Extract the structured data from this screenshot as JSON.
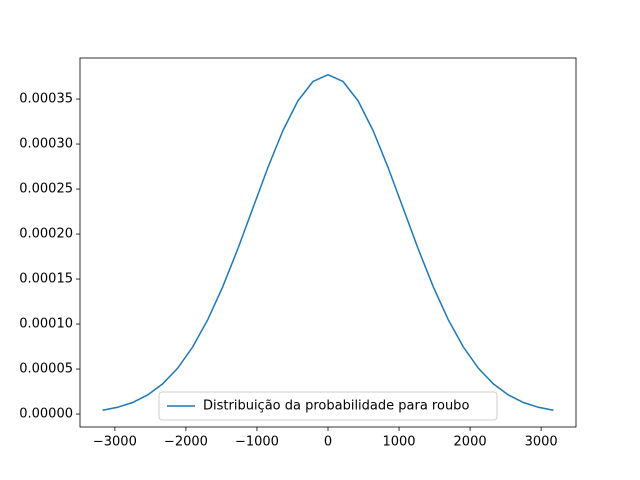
{
  "chart_data": {
    "type": "line",
    "x": [
      -3174,
      -2962.4,
      -2750.8,
      -2539.2,
      -2327.6,
      -2116,
      -1904.4,
      -1692.8,
      -1481.2,
      -1269.6,
      -1058,
      -846.4,
      -634.8,
      -423.2,
      -211.6,
      0,
      211.6,
      423.2,
      634.8,
      846.4,
      1058,
      1269.6,
      1481.2,
      1692.8,
      1904.4,
      2116,
      2327.6,
      2539.2,
      2750.8,
      2962.4,
      3174
    ],
    "series": [
      {
        "name": "Distribuição da probabilidade para roubo",
        "color": "#1f77b4",
        "values": [
          4.2e-06,
          7.5e-06,
          1.28e-05,
          2.12e-05,
          3.35e-05,
          5.1e-05,
          7.46e-05,
          0.0001048,
          0.0001415,
          0.0001835,
          0.0002287,
          0.0002738,
          0.0003149,
          0.000348,
          0.0003695,
          0.000377,
          0.0003695,
          0.000348,
          0.0003149,
          0.0002738,
          0.0002287,
          0.0001835,
          0.0001415,
          0.0001048,
          7.46e-05,
          5.1e-05,
          3.35e-05,
          2.12e-05,
          1.28e-05,
          7.5e-06,
          4.2e-06
        ]
      }
    ],
    "xlim": [
      -3491,
      3491
    ],
    "ylim": [
      -1.44e-05,
      0.0003956
    ],
    "xticks": [
      {
        "value": -3000,
        "label": "−3000"
      },
      {
        "value": -2000,
        "label": "−2000"
      },
      {
        "value": -1000,
        "label": "−1000"
      },
      0,
      1000,
      2000,
      3000
    ],
    "yticks": [
      {
        "value": 0,
        "label": "0.00000"
      },
      {
        "value": 5e-05,
        "label": "0.00005"
      },
      {
        "value": 0.0001,
        "label": "0.00010"
      },
      {
        "value": 0.00015,
        "label": "0.00015"
      },
      {
        "value": 0.0002,
        "label": "0.00020"
      },
      {
        "value": 0.00025,
        "label": "0.00025"
      },
      {
        "value": 0.0003,
        "label": "0.00030"
      },
      {
        "value": 0.00035,
        "label": "0.00035"
      }
    ],
    "legend": "lower center",
    "grid": false
  }
}
